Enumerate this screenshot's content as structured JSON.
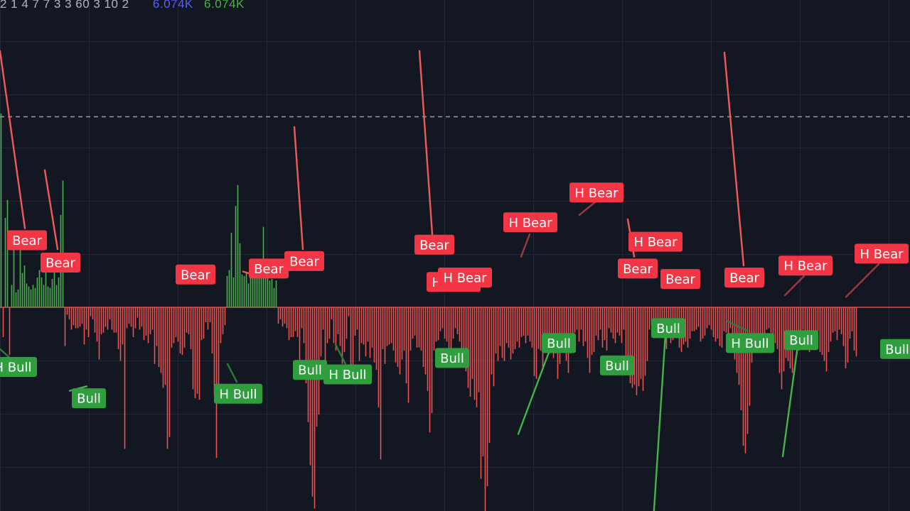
{
  "legend": {
    "params": "2 1 4 7 7 3 3 60 3 10 2",
    "value_1": "6.074K",
    "value_2": "6.074K",
    "value_1_color": "#5b5ef0",
    "value_2_color": "#4caf50"
  },
  "colors": {
    "background": "#131722",
    "grid": "#232838",
    "positive_bar": "#4caf50",
    "negative_bar": "#ef5350",
    "bear_label": "#f23645",
    "bull_label": "#2e9e3e",
    "bear_line": "#f05a5a",
    "bull_line": "#44b549",
    "hidden_bear_line": "#9c3a40",
    "hidden_bull_line": "#2e7a3a",
    "reference_line": "#c9ccd3"
  },
  "chart_data": {
    "type": "bar",
    "title": "",
    "xlabel": "",
    "ylabel": "",
    "grid": true,
    "ylim": [
      -14,
      17
    ],
    "zero_level": 0,
    "reference_level": 12.8,
    "values": [
      13,
      -2,
      6,
      7.2,
      -3.2,
      1.5,
      4,
      1,
      1.2,
      4.5,
      2.3,
      2.8,
      1.6,
      1.4,
      1.2,
      1.5,
      1.3,
      2,
      2.5,
      2,
      1.5,
      3.5,
      1.4,
      1.3,
      1.9,
      3,
      1.5,
      2,
      6.2,
      8.5,
      -2.6,
      -0.5,
      -0.8,
      -1.5,
      -1.2,
      -1.4,
      -1.4,
      -1.3,
      -1.1,
      -2.5,
      -1.5,
      -2,
      -0.6,
      -0.8,
      -1.7,
      -2.3,
      -3.5,
      -1.8,
      -1.7,
      -1.3,
      -1.5,
      -0.8,
      -1.5,
      -1.7,
      -1.7,
      -2.8,
      -3.6,
      -2.5,
      -9.5,
      -1.4,
      -1.1,
      -1.3,
      -2,
      -1.4,
      -0.7,
      -1.5,
      -1.3,
      -2.2,
      -1.9,
      -2.4,
      -1.8,
      -1.5,
      -3.8,
      -2.6,
      -4,
      -4.4,
      -5.4,
      -5.2,
      -9.5,
      -8.7,
      -2.7,
      -2.4,
      -2,
      -2.3,
      -3.1,
      -3.2,
      -2.7,
      -1.7,
      -1.8,
      -2.8,
      -5.5,
      -6.1,
      -5.8,
      -6.2,
      -2.2,
      -2.1,
      -1,
      -1.5,
      -1,
      -3.1,
      -5.9,
      -10.1,
      -5.3,
      -2.4,
      -1.8,
      -1.2,
      2.1,
      2.5,
      5,
      2,
      6.8,
      8.2,
      4.3,
      2.2,
      2.1,
      2.3,
      1.6,
      2.8,
      2,
      2.3,
      3.1,
      2.3,
      3.2,
      5.4,
      2.1,
      2.6,
      1.8,
      1.9,
      1.3,
      1.8,
      -1.1,
      -0.8,
      -1.3,
      -1.1,
      -1.4,
      -2.2,
      -2,
      -2,
      -1.6,
      -2,
      -3.7,
      -1.4,
      -2.4,
      -5.1,
      -7.7,
      -10.6,
      -12.7,
      -13.5,
      -8,
      -7.2,
      -3.3,
      -1.5,
      -3.7,
      -2.4,
      -2.1,
      -0.8,
      -2.4,
      -2.9,
      -1.8,
      -2.6,
      -3.8,
      -3,
      -2.1,
      -0.6,
      -4,
      -4,
      -1.9,
      -1.5,
      -3.6,
      -2.4,
      -2.5,
      -3.3,
      -2.3,
      -3.4,
      -2.7,
      -3.7,
      -4.2,
      -6.7,
      -10.2,
      -2.8,
      -3.8,
      -2.6,
      -2.5,
      -2.4,
      -2.9,
      -3.7,
      -4,
      -4.5,
      -3.5,
      -2.9,
      -5.1,
      -6.4,
      -2.9,
      -2.1,
      -1.9,
      -2.7,
      -2.7,
      -2.9,
      -4,
      -4.5,
      -5.6,
      -8.4,
      -7.1,
      -2.9,
      -2.3,
      -2.2,
      -1.6,
      -1.4,
      -2.1,
      -2.3,
      -3,
      -3.4,
      -2.1,
      -1.4,
      -1.8,
      -2.3,
      -3.4,
      -3.7,
      -4.3,
      -5.4,
      -6,
      -4.8,
      -6.2,
      -6.7,
      -5.7,
      -11.5,
      -10,
      -14.3,
      -12,
      -9.1,
      -4.5,
      -5.3,
      -3.1,
      -3.6,
      -2.6,
      -3.4,
      -3.6,
      -2.4,
      -2.7,
      -3.5,
      -3.1,
      -2.8,
      -2.3,
      -2.7,
      -2,
      -1.9,
      -2.4,
      -1.9,
      -2.3,
      -2.7,
      -4.6,
      -4.8,
      -2.8,
      -2.9,
      -4,
      -2.5,
      -2.7,
      -3.1,
      -2.7,
      -3.4,
      -3.1,
      -4.8,
      -3.8,
      -2.2,
      -2.5,
      -3.6,
      -4.4,
      -3.1,
      -1.9,
      -1.7,
      -1.5,
      -2.3,
      -1.5,
      -2.6,
      -2.3,
      -3.4,
      -4.4,
      -3.2,
      -3,
      -1.9,
      -2.2,
      -1.5,
      -2.7,
      -2.2,
      -2.9,
      -1.4,
      -1.7,
      -2.1,
      -2.4,
      -1.7,
      -1.9,
      -2.4,
      -1.5,
      -3.6,
      -4.3,
      -5.1,
      -5.4,
      -5.2,
      -5.9,
      -5.3,
      -4.8,
      -5.6,
      -4.6,
      -3.6,
      -1.5,
      -1.2,
      -1.5,
      -2,
      -1.4,
      -1.8,
      -1.6,
      -1.3,
      -2.8,
      -1.8,
      -2.4,
      -2.2,
      -1.6,
      -1.5,
      -2.7,
      -3,
      -2.5,
      -2.3,
      -2.7,
      -2.1,
      -1.6,
      -1.6,
      -1.5,
      -1.3,
      -2.3,
      -2.1,
      -1.9,
      -1.4,
      -1.2,
      -1.5,
      -2,
      -2.3,
      -2.1,
      -2.6,
      -2.7,
      -1.6,
      -1.7,
      -2,
      -1.4,
      -2.2,
      -3.5,
      -4.4,
      -5.2,
      -6.9,
      -9.3,
      -9.8,
      -8.5,
      -6.6,
      -3.7,
      -2.4,
      -1.8,
      -2.3,
      -2.5,
      -2.1,
      -2,
      -1.5,
      -1.4,
      -1.7,
      -2.1,
      -2.4,
      -2.8,
      -4.4,
      -5.5,
      -4.3,
      -3.4,
      -3.6,
      -4.1,
      -4.4,
      -2.7,
      -2.4,
      -2.9,
      -2.1,
      -1.5,
      -1.9,
      -2.3,
      -3,
      -1.7,
      -2,
      -1.8,
      -1.6,
      -3,
      -3.2,
      -3.6,
      -4.3,
      -3,
      -2.3,
      -1.7,
      -1.6,
      -2.2,
      -1.5,
      -1.8,
      -2.6,
      -4.1,
      -3.7,
      -2.1,
      -1.6,
      -2.9,
      -3.3
    ],
    "annotations": {
      "labels": [
        {
          "text": "Bear",
          "kind": "bear",
          "x": 38,
          "y": 4.5
        },
        {
          "text": "Bear",
          "kind": "bear",
          "x": 85,
          "y": 3.0
        },
        {
          "text": "Bear",
          "kind": "bear",
          "x": 275,
          "y": 2.2
        },
        {
          "text": "Bear",
          "kind": "bear",
          "x": 378,
          "y": 2.6
        },
        {
          "text": "Bear",
          "kind": "bear",
          "x": 428,
          "y": 3.1
        },
        {
          "text": "Bear",
          "kind": "bear",
          "x": 611,
          "y": 4.2
        },
        {
          "text": "H Bear",
          "kind": "bear",
          "x": 638,
          "y": 1.7
        },
        {
          "text": "H Bear",
          "kind": "bear",
          "x": 654,
          "y": 2.0
        },
        {
          "text": "H Bear",
          "kind": "bear",
          "x": 746,
          "y": 5.7
        },
        {
          "text": "H Bear",
          "kind": "bear",
          "x": 839,
          "y": 7.7
        },
        {
          "text": "H Bear",
          "kind": "bear",
          "x": 922,
          "y": 4.4
        },
        {
          "text": "Bear",
          "kind": "bear",
          "x": 897,
          "y": 2.6
        },
        {
          "text": "Bear",
          "kind": "bear",
          "x": 957,
          "y": 1.9
        },
        {
          "text": "Bear",
          "kind": "bear",
          "x": 1047,
          "y": 2.0
        },
        {
          "text": "H Bear",
          "kind": "bear",
          "x": 1133,
          "y": 2.8
        },
        {
          "text": "H Bear",
          "kind": "bear",
          "x": 1240,
          "y": 3.6
        },
        {
          "text": "H Bull",
          "kind": "bull",
          "x": 18,
          "y": -4.0
        },
        {
          "text": "Bull",
          "kind": "bull",
          "x": 125,
          "y": -6.1
        },
        {
          "text": "H Bull",
          "kind": "bull",
          "x": 335,
          "y": -5.8
        },
        {
          "text": "Bull",
          "kind": "bull",
          "x": 436,
          "y": -4.2
        },
        {
          "text": "H Bull",
          "kind": "bull",
          "x": 489,
          "y": -4.5
        },
        {
          "text": "Bull",
          "kind": "bull",
          "x": 636,
          "y": -3.4
        },
        {
          "text": "Bull",
          "kind": "bull",
          "x": 786,
          "y": -2.4
        },
        {
          "text": "Bull",
          "kind": "bull",
          "x": 868,
          "y": -3.9
        },
        {
          "text": "Bull",
          "kind": "bull",
          "x": 940,
          "y": -1.4
        },
        {
          "text": "H Bull",
          "kind": "bull",
          "x": 1055,
          "y": -2.4
        },
        {
          "text": "Bull",
          "kind": "bull",
          "x": 1127,
          "y": -2.2
        },
        {
          "text": "Bull",
          "kind": "bull",
          "x": 1262,
          "y": -2.8
        }
      ],
      "lines": [
        {
          "kind": "bear",
          "x1": 0,
          "y1": 17.2,
          "x2": 35,
          "y2": 5.3
        },
        {
          "kind": "bear",
          "x1": 63,
          "y1": 9.2,
          "x2": 81,
          "y2": 3.9
        },
        {
          "kind": "bear",
          "x1": 342,
          "y1": 2.4,
          "x2": 362,
          "y2": 2.1
        },
        {
          "kind": "bear",
          "x1": 414,
          "y1": 12.1,
          "x2": 426,
          "y2": 3.9
        },
        {
          "kind": "bear",
          "x1": 590,
          "y1": 17.2,
          "x2": 608,
          "y2": 4.9
        },
        {
          "kind": "bear",
          "x1": 1019,
          "y1": 17.1,
          "x2": 1046,
          "y2": 2.8
        },
        {
          "kind": "bear",
          "x1": 883,
          "y1": 5.9,
          "x2": 892,
          "y2": 3.4
        },
        {
          "kind": "hbear",
          "x1": 733,
          "y1": 3.4,
          "x2": 745,
          "y2": 4.9
        },
        {
          "kind": "hbear",
          "x1": 815,
          "y1": 6.2,
          "x2": 838,
          "y2": 7.1
        },
        {
          "kind": "hbear",
          "x1": 1104,
          "y1": 0.8,
          "x2": 1131,
          "y2": 2.1
        },
        {
          "kind": "hbear",
          "x1": 1190,
          "y1": 0.7,
          "x2": 1236,
          "y2": 2.9
        },
        {
          "kind": "bull",
          "x1": 98,
          "y1": -5.6,
          "x2": 122,
          "y2": -5.3
        },
        {
          "kind": "bull",
          "x1": 729,
          "y1": -8.5,
          "x2": 773,
          "y2": -2.9
        },
        {
          "kind": "bull",
          "x1": 919,
          "y1": -14.3,
          "x2": 936,
          "y2": -1.8
        },
        {
          "kind": "bull",
          "x1": 1101,
          "y1": -10.0,
          "x2": 1122,
          "y2": -2.6
        },
        {
          "kind": "hbull",
          "x1": 320,
          "y1": -3.8,
          "x2": 333,
          "y2": -5.0
        },
        {
          "kind": "hbull",
          "x1": 472,
          "y1": -2.5,
          "x2": 486,
          "y2": -3.8
        },
        {
          "kind": "hbull",
          "x1": 1022,
          "y1": -0.9,
          "x2": 1052,
          "y2": -1.6
        },
        {
          "kind": "hbull",
          "x1": 0,
          "y1": -2.8,
          "x2": 14,
          "y2": -3.4
        }
      ]
    }
  }
}
